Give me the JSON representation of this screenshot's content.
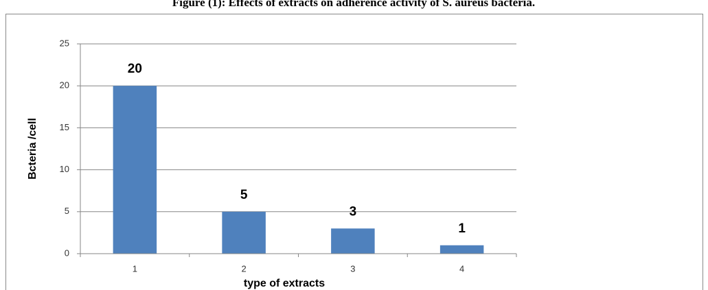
{
  "chart_data": {
    "type": "bar",
    "title": "Figure (1): Effects of extracts on adherence activity of S. aureus bacteria.",
    "x_label": "type of extracts",
    "y_label": "Bcteria /cell",
    "categories": [
      "1",
      "2",
      "3",
      "4"
    ],
    "values": [
      20,
      5,
      3,
      1
    ],
    "color": "#4f81bd",
    "ylim": [
      0,
      25
    ],
    "yticks": [
      0,
      5,
      10,
      15,
      20,
      25
    ],
    "grid": true
  }
}
